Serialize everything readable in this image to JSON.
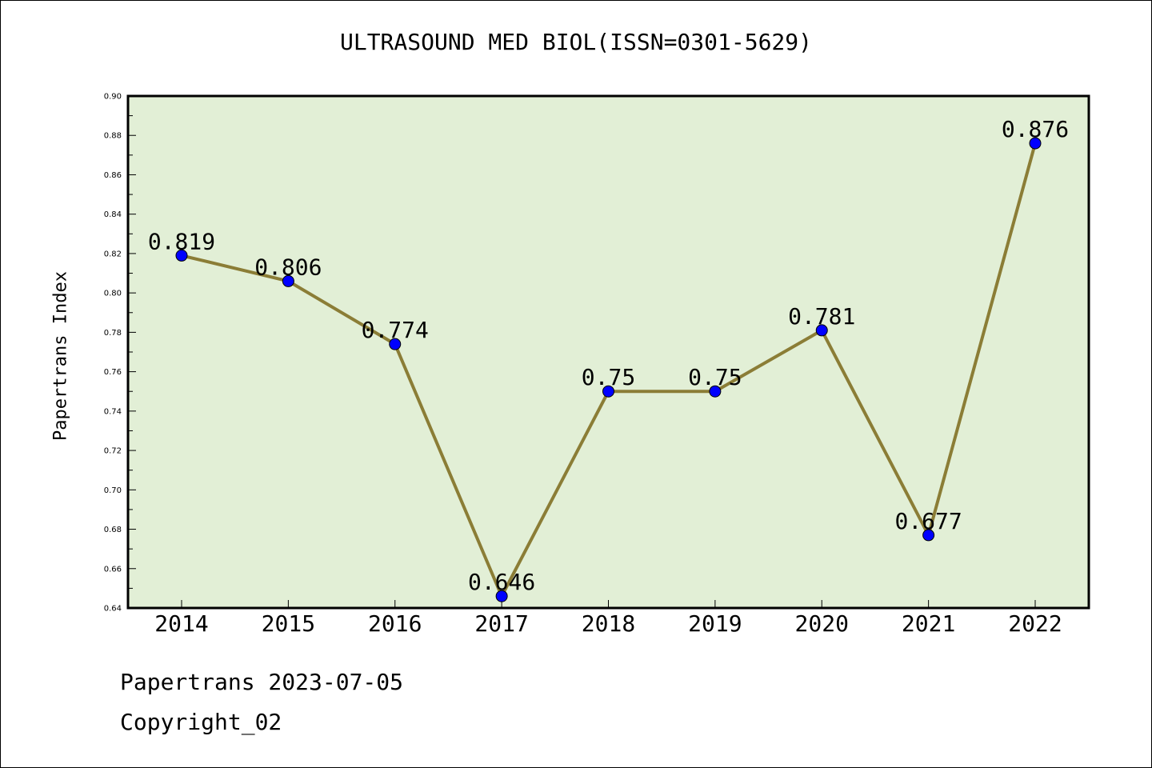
{
  "chart_data": {
    "type": "line",
    "title": "ULTRASOUND MED BIOL(ISSN=0301-5629)",
    "xlabel": "",
    "ylabel": "Papertrans Index",
    "categories": [
      "2014",
      "2015",
      "2016",
      "2017",
      "2018",
      "2019",
      "2020",
      "2021",
      "2022"
    ],
    "series": [
      {
        "values": [
          0.819,
          0.806,
          0.774,
          0.646,
          0.75,
          0.75,
          0.781,
          0.677,
          0.876
        ],
        "labels": [
          "0.819",
          "0.806",
          "0.774",
          "0.646",
          "0.75",
          "0.75",
          "0.781",
          "0.677",
          "0.876"
        ],
        "line_color": "#8B7D36",
        "marker_color": "#0000FF"
      }
    ],
    "ylim": [
      0.64,
      0.9
    ],
    "yticks": [
      "0.64",
      "0.66",
      "0.68",
      "0.70",
      "0.72",
      "0.74",
      "0.76",
      "0.78",
      "0.80",
      "0.82",
      "0.84",
      "0.86",
      "0.88",
      "0.90"
    ],
    "grid": false,
    "plot_background": "#E2EFD6"
  },
  "footer": {
    "line1": "Papertrans 2023-07-05",
    "line2": "Copyright_02"
  }
}
